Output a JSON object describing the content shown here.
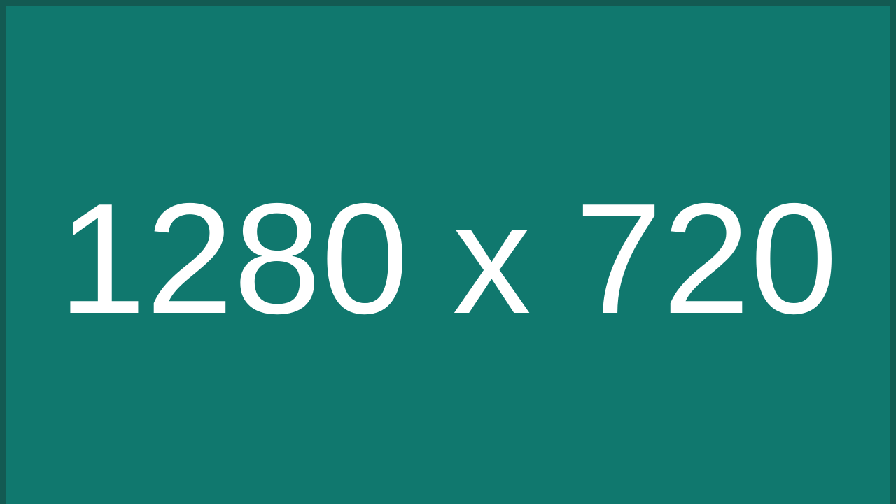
{
  "placeholder": {
    "label": "1280 x 720",
    "colors": {
      "background": "#10786e",
      "border": "#135a52",
      "text": "#ffffff"
    }
  }
}
